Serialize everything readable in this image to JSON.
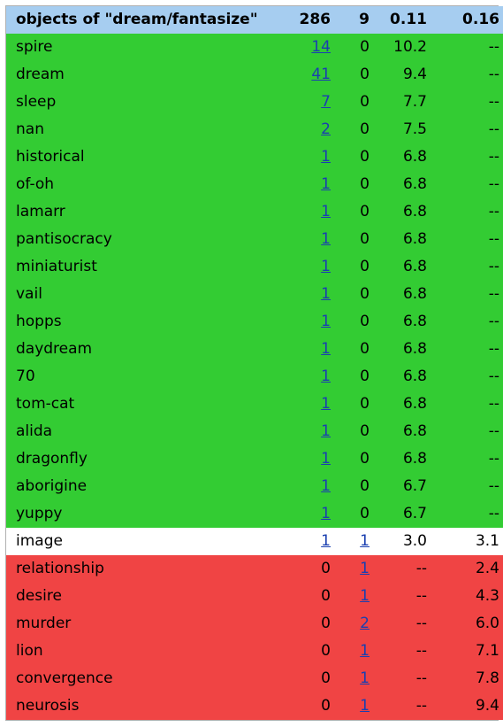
{
  "header": {
    "title": "objects of \"dream/fantasize\"",
    "count_a": "286",
    "count_b": "9",
    "score_a": "0.11",
    "score_b": "0.16"
  },
  "row_colors": {
    "header": "#a6cdf0",
    "green": "#33cc33",
    "white": "#ffffff",
    "red": "#f04444",
    "link": "#1a3fb0"
  },
  "rows": [
    {
      "word": "spire",
      "n1": "14",
      "n1_link": true,
      "n2": "0",
      "n2_link": false,
      "s1": "10.2",
      "s2": "--",
      "group": "green"
    },
    {
      "word": "dream",
      "n1": "41",
      "n1_link": true,
      "n2": "0",
      "n2_link": false,
      "s1": "9.4",
      "s2": "--",
      "group": "green"
    },
    {
      "word": "sleep",
      "n1": "7",
      "n1_link": true,
      "n2": "0",
      "n2_link": false,
      "s1": "7.7",
      "s2": "--",
      "group": "green"
    },
    {
      "word": "nan",
      "n1": "2",
      "n1_link": true,
      "n2": "0",
      "n2_link": false,
      "s1": "7.5",
      "s2": "--",
      "group": "green"
    },
    {
      "word": "historical",
      "n1": "1",
      "n1_link": true,
      "n2": "0",
      "n2_link": false,
      "s1": "6.8",
      "s2": "--",
      "group": "green"
    },
    {
      "word": "of-oh",
      "n1": "1",
      "n1_link": true,
      "n2": "0",
      "n2_link": false,
      "s1": "6.8",
      "s2": "--",
      "group": "green"
    },
    {
      "word": "lamarr",
      "n1": "1",
      "n1_link": true,
      "n2": "0",
      "n2_link": false,
      "s1": "6.8",
      "s2": "--",
      "group": "green"
    },
    {
      "word": "pantisocracy",
      "n1": "1",
      "n1_link": true,
      "n2": "0",
      "n2_link": false,
      "s1": "6.8",
      "s2": "--",
      "group": "green"
    },
    {
      "word": "miniaturist",
      "n1": "1",
      "n1_link": true,
      "n2": "0",
      "n2_link": false,
      "s1": "6.8",
      "s2": "--",
      "group": "green"
    },
    {
      "word": "vail",
      "n1": "1",
      "n1_link": true,
      "n2": "0",
      "n2_link": false,
      "s1": "6.8",
      "s2": "--",
      "group": "green"
    },
    {
      "word": "hopps",
      "n1": "1",
      "n1_link": true,
      "n2": "0",
      "n2_link": false,
      "s1": "6.8",
      "s2": "--",
      "group": "green"
    },
    {
      "word": "daydream",
      "n1": "1",
      "n1_link": true,
      "n2": "0",
      "n2_link": false,
      "s1": "6.8",
      "s2": "--",
      "group": "green"
    },
    {
      "word": "70",
      "n1": "1",
      "n1_link": true,
      "n2": "0",
      "n2_link": false,
      "s1": "6.8",
      "s2": "--",
      "group": "green"
    },
    {
      "word": "tom-cat",
      "n1": "1",
      "n1_link": true,
      "n2": "0",
      "n2_link": false,
      "s1": "6.8",
      "s2": "--",
      "group": "green"
    },
    {
      "word": "alida",
      "n1": "1",
      "n1_link": true,
      "n2": "0",
      "n2_link": false,
      "s1": "6.8",
      "s2": "--",
      "group": "green"
    },
    {
      "word": "dragonfly",
      "n1": "1",
      "n1_link": true,
      "n2": "0",
      "n2_link": false,
      "s1": "6.8",
      "s2": "--",
      "group": "green"
    },
    {
      "word": "aborigine",
      "n1": "1",
      "n1_link": true,
      "n2": "0",
      "n2_link": false,
      "s1": "6.7",
      "s2": "--",
      "group": "green"
    },
    {
      "word": "yuppy",
      "n1": "1",
      "n1_link": true,
      "n2": "0",
      "n2_link": false,
      "s1": "6.7",
      "s2": "--",
      "group": "green"
    },
    {
      "word": "image",
      "n1": "1",
      "n1_link": true,
      "n2": "1",
      "n2_link": true,
      "s1": "3.0",
      "s2": "3.1",
      "group": "white"
    },
    {
      "word": "relationship",
      "n1": "0",
      "n1_link": false,
      "n2": "1",
      "n2_link": true,
      "s1": "--",
      "s2": "2.4",
      "group": "red"
    },
    {
      "word": "desire",
      "n1": "0",
      "n1_link": false,
      "n2": "1",
      "n2_link": true,
      "s1": "--",
      "s2": "4.3",
      "group": "red"
    },
    {
      "word": "murder",
      "n1": "0",
      "n1_link": false,
      "n2": "2",
      "n2_link": true,
      "s1": "--",
      "s2": "6.0",
      "group": "red"
    },
    {
      "word": "lion",
      "n1": "0",
      "n1_link": false,
      "n2": "1",
      "n2_link": true,
      "s1": "--",
      "s2": "7.1",
      "group": "red"
    },
    {
      "word": "convergence",
      "n1": "0",
      "n1_link": false,
      "n2": "1",
      "n2_link": true,
      "s1": "--",
      "s2": "7.8",
      "group": "red"
    },
    {
      "word": "neurosis",
      "n1": "0",
      "n1_link": false,
      "n2": "1",
      "n2_link": true,
      "s1": "--",
      "s2": "9.4",
      "group": "red"
    }
  ]
}
